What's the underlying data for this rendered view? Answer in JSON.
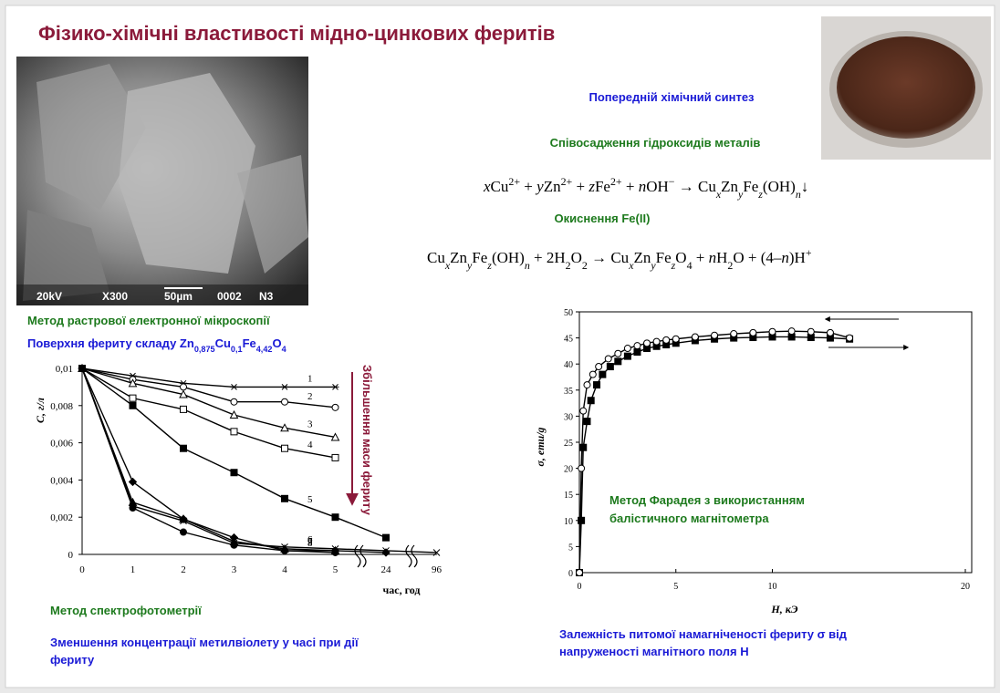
{
  "title": "Фізико-хімічні властивості мідно-цинкових феритів",
  "sem_image": {
    "labels": [
      "20kV",
      "X300",
      "50µm",
      "0002",
      "N3"
    ]
  },
  "synthesis": {
    "heading": "Попередній хімічний синтез",
    "step1": "Співосадження гідроксидів металів",
    "equation1": [
      {
        "text": "x",
        "style": "i"
      },
      {
        "text": "Cu",
        "style": ""
      },
      {
        "text": "2+",
        "style": "sup"
      },
      {
        "text": " + ",
        "style": ""
      },
      {
        "text": "y",
        "style": "i"
      },
      {
        "text": "Zn",
        "style": ""
      },
      {
        "text": "2+",
        "style": "sup"
      },
      {
        "text": " + ",
        "style": ""
      },
      {
        "text": "z",
        "style": "i"
      },
      {
        "text": "Fe",
        "style": ""
      },
      {
        "text": "2+",
        "style": "sup"
      },
      {
        "text": " + ",
        "style": ""
      },
      {
        "text": "n",
        "style": "i"
      },
      {
        "text": "OH",
        "style": ""
      },
      {
        "text": "−",
        "style": "sup"
      },
      {
        "text": " → Cu",
        "style": ""
      },
      {
        "text": "x",
        "style": "subi"
      },
      {
        "text": "Zn",
        "style": ""
      },
      {
        "text": "y",
        "style": "subi"
      },
      {
        "text": "Fe",
        "style": ""
      },
      {
        "text": "z",
        "style": "subi"
      },
      {
        "text": "(OH)",
        "style": ""
      },
      {
        "text": "n",
        "style": "subi"
      },
      {
        "text": "↓",
        "style": ""
      }
    ],
    "step2": "Окиснення Fe(II)",
    "equation2": [
      {
        "text": "Cu",
        "style": ""
      },
      {
        "text": "x",
        "style": "subi"
      },
      {
        "text": "Zn",
        "style": ""
      },
      {
        "text": "y",
        "style": "subi"
      },
      {
        "text": "Fe",
        "style": ""
      },
      {
        "text": "z",
        "style": "subi"
      },
      {
        "text": "(OH)",
        "style": ""
      },
      {
        "text": "n",
        "style": "subi"
      },
      {
        "text": " + 2H",
        "style": ""
      },
      {
        "text": "2",
        "style": "sub"
      },
      {
        "text": "O",
        "style": ""
      },
      {
        "text": "2",
        "style": "sub"
      },
      {
        "text": " → Cu",
        "style": ""
      },
      {
        "text": "x",
        "style": "subi"
      },
      {
        "text": "Zn",
        "style": ""
      },
      {
        "text": "y",
        "style": "subi"
      },
      {
        "text": "Fe",
        "style": ""
      },
      {
        "text": "z",
        "style": "subi"
      },
      {
        "text": "O",
        "style": ""
      },
      {
        "text": "4",
        "style": "sub"
      },
      {
        "text": " + ",
        "style": ""
      },
      {
        "text": "n",
        "style": "i"
      },
      {
        "text": "H",
        "style": ""
      },
      {
        "text": "2",
        "style": "sub"
      },
      {
        "text": "O + (4–",
        "style": ""
      },
      {
        "text": "n",
        "style": "i"
      },
      {
        "text": ")H",
        "style": ""
      },
      {
        "text": "+",
        "style": "sup"
      }
    ]
  },
  "sem_method": {
    "method": "Метод растрової електронної мікроскопії",
    "surface": [
      {
        "text": "Поверхня фериту складу Zn",
        "style": ""
      },
      {
        "text": "0,875",
        "style": "sub"
      },
      {
        "text": "Cu",
        "style": ""
      },
      {
        "text": "0,1",
        "style": "sub"
      },
      {
        "text": "Fe",
        "style": ""
      },
      {
        "text": "4,42",
        "style": "sub"
      },
      {
        "text": "O",
        "style": ""
      },
      {
        "text": "4",
        "style": "sub"
      }
    ]
  },
  "spectro": {
    "method": "Метод спектрофотометрії",
    "caption": [
      "Зменшення концентрації метилвіолету у часі при дії",
      "фериту"
    ]
  },
  "magnet": {
    "caption": [
      "Залежність питомої намагніченості фериту σ від",
      "напруженості магнітного поля H"
    ]
  },
  "chart_data": [
    {
      "type": "line",
      "x_label": "час, год",
      "y_label": "C, г/л",
      "annotation": "Збільшення маси фериту",
      "categories": [
        "0",
        "1",
        "2",
        "3",
        "4",
        "5",
        "24",
        "96"
      ],
      "ylim": [
        0,
        0.01
      ],
      "yticks": [
        0,
        {
          "value": 0.002,
          "label": "0,002"
        },
        {
          "value": 0.004,
          "label": "0,004"
        },
        {
          "value": 0.006,
          "label": "0,006"
        },
        {
          "value": 0.008,
          "label": "0,008"
        },
        {
          "value": 0.01,
          "label": "0,01"
        }
      ],
      "grid": false,
      "series": [
        {
          "name": "1",
          "color": "#000000",
          "marker": "star",
          "filled": false,
          "values": [
            0.01,
            0.0096,
            0.0092,
            0.009,
            0.009,
            0.009,
            null,
            null
          ]
        },
        {
          "name": "2",
          "color": "#000000",
          "marker": "circle",
          "filled": false,
          "values": [
            0.01,
            0.0094,
            0.009,
            0.0082,
            0.0082,
            0.0079,
            null,
            null
          ]
        },
        {
          "name": "3",
          "color": "#000000",
          "marker": "triangle",
          "filled": false,
          "values": [
            0.01,
            0.0092,
            0.0086,
            0.0075,
            0.0068,
            0.0063,
            null,
            null
          ]
        },
        {
          "name": "4",
          "color": "#000000",
          "marker": "square",
          "filled": false,
          "values": [
            0.01,
            0.0084,
            0.0078,
            0.0066,
            0.0057,
            0.0052,
            null,
            null
          ]
        },
        {
          "name": "5",
          "color": "#000000",
          "marker": "square",
          "filled": true,
          "values": [
            0.01,
            0.008,
            0.0057,
            0.0044,
            0.003,
            0.002,
            0.0009,
            null
          ]
        },
        {
          "name": "6",
          "color": "#000000",
          "marker": "x",
          "filled": false,
          "values": [
            0.01,
            0.0026,
            0.0018,
            0.0006,
            0.0004,
            0.0003,
            0.0002,
            0.0001
          ]
        },
        {
          "name": "7",
          "color": "#000000",
          "marker": "triangle",
          "filled": true,
          "values": [
            0.01,
            0.0028,
            0.0019,
            0.0007,
            0.0003,
            0.0002,
            null,
            null
          ]
        },
        {
          "name": "8",
          "color": "#000000",
          "marker": "circle",
          "filled": true,
          "values": [
            0.01,
            0.0025,
            0.0012,
            0.0005,
            0.0002,
            0.0001,
            null,
            null
          ]
        },
        {
          "name": "9",
          "color": "#000000",
          "marker": "diamond",
          "filled": true,
          "values": [
            0.01,
            0.0039,
            0.0019,
            0.0009,
            0.0002,
            0.0002,
            0.0001,
            null
          ]
        }
      ]
    },
    {
      "type": "line",
      "x_label": "H, кЭ",
      "y_label": "σ, emu/g",
      "annotation": [
        "Метод Фарадея з використанням",
        "балістичного магнітометра"
      ],
      "xlim": [
        0,
        20
      ],
      "xticks": [
        0,
        5,
        10,
        20
      ],
      "ylim": [
        0,
        50
      ],
      "yticks": [
        0,
        5,
        10,
        15,
        20,
        25,
        30,
        35,
        40,
        45,
        50
      ],
      "grid": false,
      "series": [
        {
          "color": "#000000",
          "marker": "square",
          "filled": true,
          "x": [
            0,
            0.1,
            0.2,
            0.4,
            0.6,
            0.9,
            1.2,
            1.6,
            2,
            2.5,
            3,
            3.5,
            4,
            4.5,
            5,
            6,
            7,
            8,
            9,
            10,
            11,
            12,
            13,
            14
          ],
          "values": [
            0,
            10,
            24,
            29,
            33,
            36,
            38,
            39.5,
            40.5,
            41.5,
            42.3,
            43,
            43.4,
            43.7,
            44,
            44.5,
            44.8,
            45,
            45.1,
            45.2,
            45.2,
            45.1,
            45,
            44.8
          ]
        },
        {
          "color": "#000000",
          "marker": "circle",
          "filled": false,
          "x": [
            0,
            0.1,
            0.2,
            0.4,
            0.7,
            1,
            1.5,
            2,
            2.5,
            3,
            3.5,
            4,
            4.5,
            5,
            6,
            7,
            8,
            9,
            10,
            11,
            12,
            13,
            14
          ],
          "values": [
            0,
            20,
            31,
            36,
            38,
            39.5,
            41,
            42,
            43,
            43.5,
            44,
            44.3,
            44.6,
            44.8,
            45.2,
            45.5,
            45.8,
            46,
            46.2,
            46.3,
            46.2,
            46,
            45
          ]
        }
      ]
    }
  ]
}
